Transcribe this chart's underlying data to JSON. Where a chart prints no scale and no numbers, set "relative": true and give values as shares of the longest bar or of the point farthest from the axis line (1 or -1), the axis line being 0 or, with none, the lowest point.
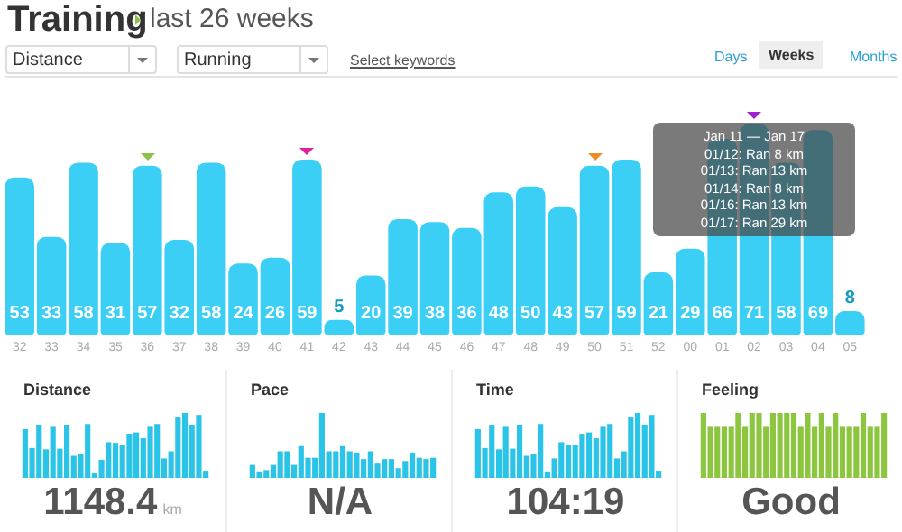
{
  "chart_data": [
    {
      "type": "bar",
      "title": "Training",
      "subtitle": "last 26 weeks",
      "categories": [
        "32",
        "33",
        "34",
        "35",
        "36",
        "37",
        "38",
        "39",
        "40",
        "41",
        "42",
        "43",
        "44",
        "45",
        "46",
        "47",
        "48",
        "49",
        "50",
        "51",
        "52",
        "00",
        "01",
        "02",
        "03",
        "04",
        "05"
      ],
      "values": [
        53,
        33,
        58,
        31,
        57,
        32,
        58,
        24,
        26,
        59,
        5,
        20,
        39,
        38,
        36,
        48,
        50,
        43,
        57,
        59,
        21,
        29,
        66,
        71,
        58,
        69,
        8
      ],
      "color": "#3ccff5",
      "data_labels": true,
      "annotations": [
        "Distance",
        "Running",
        "Select keywords",
        "Days",
        "Weeks",
        "Months",
        "Jan 11 — Jan 17\n01/12: Ran 8 km\n01/13: Ran 13 km\n01/14: Ran 8 km\n01/16: Ran 13 km\n01/17: Ran 29 km"
      ]
    },
    {
      "type": "bar",
      "title": "Distance",
      "relative": true,
      "color": "#29c4e8",
      "categories": [
        null,
        null,
        null,
        null,
        null,
        null,
        null,
        null,
        null,
        null,
        null,
        null,
        null,
        null,
        null,
        null,
        null,
        null,
        null,
        null,
        null,
        null,
        null,
        null,
        null,
        null,
        null
      ],
      "values": [
        0.75,
        0.46,
        0.82,
        0.44,
        0.8,
        0.45,
        0.82,
        0.34,
        0.37,
        0.83,
        0.07,
        0.28,
        0.55,
        0.54,
        0.51,
        0.68,
        0.7,
        0.61,
        0.8,
        0.83,
        0.3,
        0.41,
        0.93,
        1,
        0.82,
        0.97,
        0.11
      ],
      "annotations": [
        "1148.4",
        "km"
      ]
    },
    {
      "type": "bar",
      "title": "Pace",
      "relative": true,
      "color": "#29c4e8",
      "categories": [
        null,
        null,
        null,
        null,
        null,
        null,
        null,
        null,
        null,
        null,
        null,
        null,
        null,
        null,
        null,
        null,
        null,
        null,
        null,
        null,
        null,
        null,
        null,
        null,
        null,
        null,
        null
      ],
      "values": [
        0.2,
        0.1,
        0.12,
        0.2,
        0.41,
        0.41,
        0.2,
        0.49,
        0.31,
        0.31,
        1,
        0.41,
        0.41,
        0.49,
        0.41,
        0.39,
        0.29,
        0.41,
        0.22,
        0.29,
        0.29,
        0.15,
        0.26,
        0.39,
        0.31,
        0.29,
        0.31
      ],
      "annotations": [
        "N/A"
      ]
    },
    {
      "type": "bar",
      "title": "Time",
      "relative": true,
      "color": "#29c4e8",
      "categories": [
        null,
        null,
        null,
        null,
        null,
        null,
        null,
        null,
        null,
        null,
        null,
        null,
        null,
        null,
        null,
        null,
        null,
        null,
        null,
        null,
        null,
        null,
        null,
        null,
        null,
        null,
        null
      ],
      "values": [
        0.75,
        0.46,
        0.82,
        0.44,
        0.8,
        0.45,
        0.82,
        0.34,
        0.37,
        0.83,
        0.1,
        0.3,
        0.55,
        0.5,
        0.5,
        0.68,
        0.7,
        0.61,
        0.8,
        0.83,
        0.3,
        0.41,
        0.93,
        1,
        0.82,
        0.97,
        0.11
      ],
      "annotations": [
        "104:19"
      ]
    },
    {
      "type": "bar",
      "title": "Feeling",
      "relative": true,
      "color": "#8cc63f",
      "categories": [
        null,
        null,
        null,
        null,
        null,
        null,
        null,
        null,
        null,
        null,
        null,
        null,
        null,
        null,
        null,
        null,
        null,
        null,
        null,
        null,
        null,
        null,
        null,
        null,
        null,
        null,
        null
      ],
      "values": [
        1,
        0.8,
        0.8,
        0.8,
        0.8,
        1,
        0.8,
        1,
        1,
        0.8,
        1,
        1,
        1,
        1,
        0.8,
        1,
        0.8,
        1,
        0.8,
        1,
        0.8,
        0.8,
        0.8,
        1,
        0.8,
        0.8,
        1
      ],
      "annotations": [
        "Good"
      ]
    }
  ]
}
